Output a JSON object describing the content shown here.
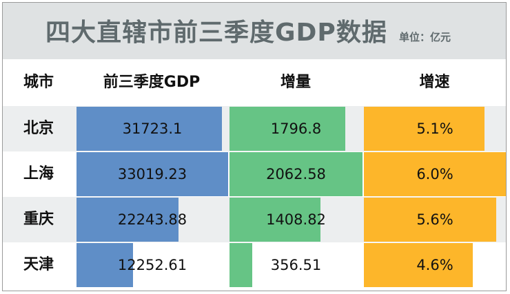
{
  "title": "四大直辖市前三季度GDP数据",
  "unit": "单位：亿元",
  "headers": {
    "city": "城市",
    "gdp": "前三季度GDP",
    "increase": "增量",
    "growth": "增速"
  },
  "colors": {
    "gdp": "#5f8ec7",
    "increase": "#66c485",
    "growth": "#fdb62a",
    "row_alt": "#eceeef",
    "title_bg": "#dfe2e3"
  },
  "chart_data": {
    "type": "table",
    "title": "四大直辖市前三季度GDP数据",
    "columns": [
      "城市",
      "前三季度GDP",
      "增量",
      "增速"
    ],
    "rows": [
      {
        "city": "北京",
        "gdp": 31723.1,
        "gdp_label": "31723.1",
        "increase": 1796.8,
        "increase_label": "1796.8",
        "growth": 5.1,
        "growth_label": "5.1%"
      },
      {
        "city": "上海",
        "gdp": 33019.23,
        "gdp_label": "33019.23",
        "increase": 2062.58,
        "increase_label": "2062.58",
        "growth": 6.0,
        "growth_label": "6.0%"
      },
      {
        "city": "重庆",
        "gdp": 22243.88,
        "gdp_label": "22243.88",
        "increase": 1408.82,
        "increase_label": "1408.82",
        "growth": 5.6,
        "growth_label": "5.6%"
      },
      {
        "city": "天津",
        "gdp": 12252.61,
        "gdp_label": "12252.61",
        "increase": 356.51,
        "increase_label": "356.51",
        "growth": 4.6,
        "growth_label": "4.6%"
      }
    ]
  }
}
